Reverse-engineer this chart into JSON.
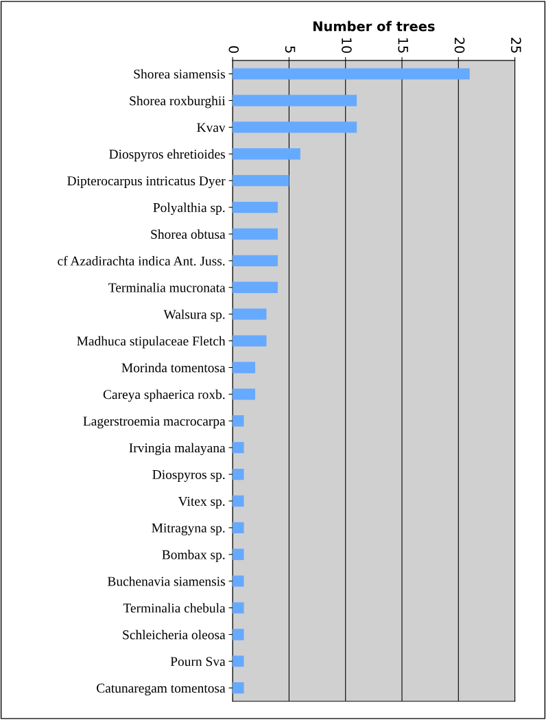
{
  "chart_data": {
    "type": "bar",
    "orientation": "horizontal",
    "xlabel": "Number of trees",
    "categories": [
      "Shorea siamensis",
      "Shorea roxburghii",
      "Kvav",
      "Diospyros ehretioides",
      "Dipterocarpus intricatus Dyer",
      "Polyalthia sp.",
      "Shorea obtusa",
      "cf Azadirachta indica Ant. Juss.",
      "Terminalia mucronata",
      "Walsura sp.",
      "Madhuca stipulaceae Fletch",
      "Morinda tomentosa",
      "Careya sphaerica roxb.",
      "Lagerstroemia macrocarpa",
      "Irvingia malayana",
      "Diospyros sp.",
      "Vitex sp.",
      "Mitragyna sp.",
      "Bombax sp.",
      "Buchenavia siamensis",
      "Terminalia chebula",
      "Schleicheria oleosa",
      "Pourn Sva",
      "Catunaregam tomentosa"
    ],
    "values": [
      21,
      11,
      11,
      6,
      5,
      4,
      4,
      4,
      4,
      3,
      3,
      2,
      2,
      1,
      1,
      1,
      1,
      1,
      1,
      1,
      1,
      1,
      1,
      1
    ],
    "color": "#66aaff",
    "xlim": [
      0,
      25
    ],
    "xticks": [
      0,
      5,
      10,
      15,
      20,
      25
    ],
    "grid": "x",
    "legend": false
  }
}
